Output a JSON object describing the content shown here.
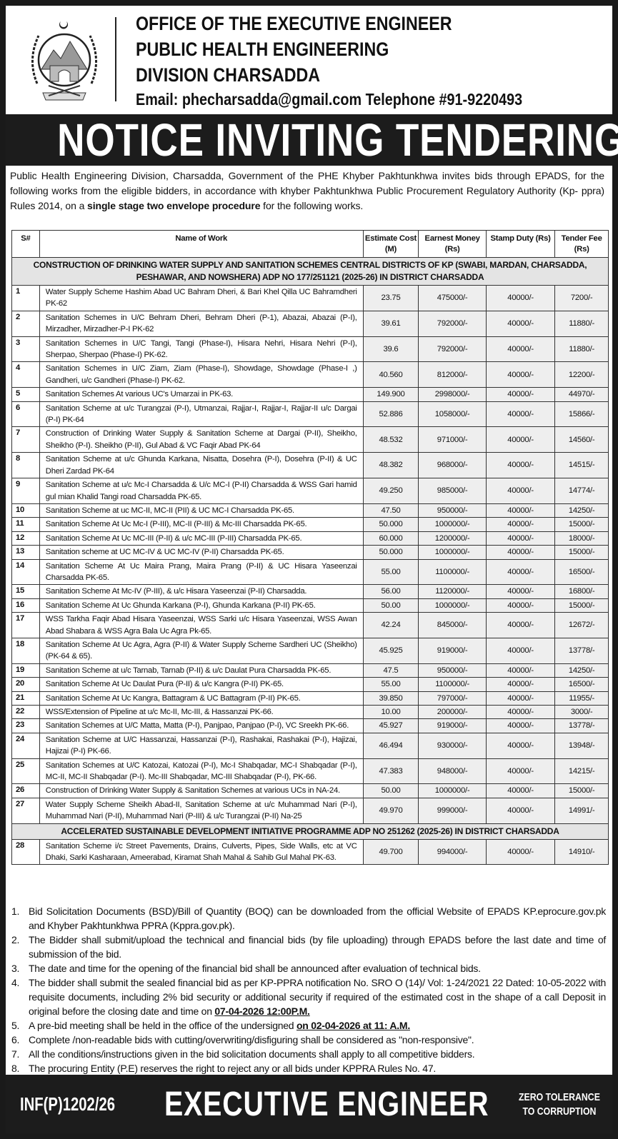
{
  "header": {
    "line1": "OFFICE OF THE EXECUTIVE ENGINEER",
    "line2": "PUBLIC HEALTH ENGINEERING",
    "line3": "DIVISION CHARSADDA",
    "contact": "Email: phecharsadda@gmail.com Telephone #91-9220493",
    "logo": "Government of Khyber Pakhtunkhwa emblem"
  },
  "title": "NOTICE INVITING TENDERING",
  "intro": {
    "text": "Public Health Engineering Division, Charsadda, Government of the PHE Khyber Pakhtunkhwa invites bids through EPADS, for the following works from the eligible bidders, in accordance with khyber Pakhtunkhwa Public Procurement Regulatory Authority (Kp- ppra) Rules 2014, on a ",
    "bold": "single stage two envelope procedure",
    "tail": " for the following works."
  },
  "table": {
    "headers": [
      "S#",
      "Name of Work",
      "Estimate Cost (M)",
      "Earnest Money (Rs)",
      "Stamp Duty (Rs)",
      "Tender Fee (Rs)"
    ],
    "sections": [
      {
        "title": "CONSTRUCTION OF DRINKING WATER SUPPLY AND SANITATION SCHEMES CENTRAL DISTRICTS OF KP (SWABI, MARDAN, CHARSADDA, PESHAWAR, AND NOWSHERA) ADP NO 177/251121 (2025-26)  IN DISTRICT CHARSADDA",
        "rows": [
          [
            "1",
            "Water Supply Scheme Hashim Abad UC Bahram Dheri, & Bari Khel Qilla UC Bahramdheri PK-62",
            "23.75",
            "475000/-",
            "40000/-",
            "7200/-"
          ],
          [
            "2",
            "Sanitation Schemes in U/C Behram Dheri, Behram Dheri (P-1), Abazai, Abazai (P-I), Mirzadher, Mirzadher-P-I PK-62",
            "39.61",
            "792000/-",
            "40000/-",
            "11880/-"
          ],
          [
            "3",
            "Sanitation Schemes in U/C Tangi, Tangi (Phase-I), Hisara Nehri, Hisara Nehri (P-I), Sherpao, Sherpao (Phase-I) PK-62.",
            "39.6",
            "792000/-",
            "40000/-",
            "11880/-"
          ],
          [
            "4",
            "Sanitation Schemes in U/C Ziam, Ziam (Phase-I), Showdage, Showdage (Phase-I ,) Gandheri, u/c Gandheri (Phase-I) PK-62.",
            "40.560",
            "812000/-",
            "40000/-",
            "12200/-"
          ],
          [
            "5",
            "Sanitation Schemes At various UC's Umarzai in PK-63.",
            "149.900",
            "2998000/-",
            "40000/-",
            "44970/-"
          ],
          [
            "6",
            "Sanitation Scheme at u/c Turangzai (P-I), Utmanzai, Rajjar-I, Rajjar-I, Rajjar-II u/c Dargai (P-I) PK-64",
            "52.886",
            "1058000/-",
            "40000/-",
            "15866/-"
          ],
          [
            "7",
            "Construction of Drinking Water Supply & Sanitation Scheme at Dargai (P-II), Sheikho, Sheikho (P-I). Sheikho (P-II), Gul Abad & VC Faqir Abad PK-64",
            "48.532",
            "971000/-",
            "40000/-",
            "14560/-"
          ],
          [
            "8",
            "Sanitation Scheme at u/c Ghunda Karkana, Nisatta, Dosehra (P-I), Dosehra (P-II) & UC Dheri Zardad PK-64",
            "48.382",
            "968000/-",
            "40000/-",
            "14515/-"
          ],
          [
            "9",
            "Sanitation Scheme at u/c Mc-I Charsadda & U/c MC-I (P-II) Charsadda & WSS Gari hamid gul mian Khalid Tangi road Charsadda PK-65.",
            "49.250",
            "985000/-",
            "40000/-",
            "14774/-"
          ],
          [
            "10",
            "Sanitation Scheme at uc MC-II, MC-II (PII) & UC MC-I Charsadda PK-65.",
            "47.50",
            "950000/-",
            "40000/-",
            "14250/-"
          ],
          [
            "11",
            "Sanitation Scheme At Uc Mc-I (P-III), MC-II (P-III) & Mc-III Charsadda PK-65.",
            "50.000",
            "1000000/-",
            "40000/-",
            "15000/-"
          ],
          [
            "12",
            "Sanitation Scheme At Uc MC-III (P-II) & u/c MC-III (P-III) Charsadda PK-65.",
            "60.000",
            "1200000/-",
            "40000/-",
            "18000/-"
          ],
          [
            "13",
            "Sanitation scheme at UC MC-IV & UC MC-IV (P-II) Charsadda PK-65.",
            "50.000",
            "1000000/-",
            "40000/-",
            "15000/-"
          ],
          [
            "14",
            "Sanitation Scheme At Uc Maira Prang, Maira Prang (P-II) & UC Hisara Yaseenzai Charsadda PK-65.",
            "55.00",
            "1100000/-",
            "40000/-",
            "16500/-"
          ],
          [
            "15",
            "Sanitation Scheme At Mc-IV (P-III), & u/c Hisara Yaseenzai (P-II) Charsadda.",
            "56.00",
            "1120000/-",
            "40000/-",
            "16800/-"
          ],
          [
            "16",
            "Sanitation Scheme At Uc Ghunda Karkana (P-I), Ghunda Karkana (P-II) PK-65.",
            "50.00",
            "1000000/-",
            "40000/-",
            "15000/-"
          ],
          [
            "17",
            "WSS Tarkha Faqir Abad Hisara Yaseenzai, WSS Sarki u/c Hisara Yaseenzai, WSS Awan Abad Shabara & WSS Agra Bala Uc Agra Pk-65.",
            "42.24",
            "845000/-",
            "40000/-",
            "12672/-"
          ],
          [
            "18",
            "Sanitation Scheme At Uc Agra, Agra (P-II) & Water Supply Scheme Sardheri UC (Sheikho) (PK-64 & 65).",
            "45.925",
            "919000/-",
            "40000/-",
            "13778/-"
          ],
          [
            "19",
            "Sanitation Scheme at u/c Tarnab, Tarnab (P-II) & u/c Daulat Pura Charsadda PK-65.",
            "47.5",
            "950000/-",
            "40000/-",
            "14250/-"
          ],
          [
            "20",
            "Sanitation Scheme At Uc Daulat Pura (P-II) & u/c Kangra (P-II) PK-65.",
            "55.00",
            "1100000/-",
            "40000/-",
            "16500/-"
          ],
          [
            "21",
            "Sanitation Scheme At Uc Kangra, Battagram & UC Battagram (P-II) PK-65.",
            "39.850",
            "797000/-",
            "40000/-",
            "11955/-"
          ],
          [
            "22",
            "WSS/Extension of Pipeline at u/c Mc-II, Mc-III, & Hassanzai PK-66.",
            "10.00",
            "200000/-",
            "40000/-",
            "3000/-"
          ],
          [
            "23",
            "Sanitation Schemes at U/C Matta, Matta (P-I), Panjpao, Panjpao (P-I), VC Sreekh PK-66.",
            "45.927",
            "919000/-",
            "40000/-",
            "13778/-"
          ],
          [
            "24",
            "Sanitation Scheme at U/C Hassanzai, Hassanzai (P-I), Rashakai, Rashakai (P-I), Hajizai, Hajizai (P-I) PK-66.",
            "46.494",
            "930000/-",
            "40000/-",
            "13948/-"
          ],
          [
            "25",
            "Sanitation Schemes at U/C Katozai, Katozai (P-I), Mc-I Shabqadar, MC-I Shabqadar (P-I), MC-II, MC-II Shabqadar (P-I). Mc-III Shabqadar, MC-III Shabqadar (P-I), PK-66.",
            "47.383",
            "948000/-",
            "40000/-",
            "14215/-"
          ],
          [
            "26",
            "Construction of Drinking Water Supply & Sanitation Schemes at various UCs in NA-24.",
            "50.00",
            "1000000/-",
            "40000/-",
            "15000/-"
          ],
          [
            "27",
            "Water Supply Scheme Sheikh Abad-II, Sanitation Scheme at u/c Muhammad Nari (P-I), Muhammad Nari (P-II), Muhammad Nari (P-III) & u/c Turangzai (P-II) Na-25",
            "49.970",
            "999000/-",
            "40000/-",
            "14991/-"
          ]
        ]
      },
      {
        "title": "ACCELERATED SUSTAINABLE DEVELOPMENT INITIATIVE PROGRAMME ADP NO 251262 (2025-26) IN DISTRICT CHARSADDA",
        "rows": [
          [
            "28",
            "Sanitation Scheme i/c Street Pavements, Drains, Culverts, Pipes, Side Walls, etc at VC Dhaki, Sarki Kasharaan, Ameerabad, Kiramat Shah Mahal & Sahib Gul Mahal PK-63.",
            "49.700",
            "994000/-",
            "40000/-",
            "14910/-"
          ]
        ]
      }
    ]
  },
  "notes": [
    {
      "n": "1.",
      "text": "Bid Solicitation Documents (BSD)/Bill of Quantity (BOQ) can be downloaded from the official Website of EPADS KP.eprocure.gov.pk and Khyber Pakhtunkhwa PPRA (Kppra.gov.pk).",
      "bold": ""
    },
    {
      "n": "2.",
      "text": "The Bidder shall submit/upload the technical and financial bids (by file uploading) through EPADS before the last date and time of submission of the bid.",
      "bold": ""
    },
    {
      "n": "3.",
      "text": "The date and time for the opening of the financial bid shall be announced after evaluation of technical bids.",
      "bold": ""
    },
    {
      "n": "4.",
      "text": "The bidder shall submit the sealed financial bid as per KP-PPRA notification No. SRO O (14)/ Vol: 1-24/2021 22 Dated: 10-05-2022 with requisite documents, including 2% bid security or additional security if required of the estimated cost in the shape of a call Deposit in original before the closing date and time on ",
      "bold": "07-04-2026 12:00P.M."
    },
    {
      "n": "5.",
      "text": "A pre-bid meeting shall be held in the office of the undersigned ",
      "bold": "on 02-04-2026 at 11: A.M."
    },
    {
      "n": "6.",
      "text": "Complete /non-readable bids with cutting/overwriting/disfiguring shall be considered as \"non-responsive\".",
      "bold": ""
    },
    {
      "n": "7.",
      "text": "All the conditions/instructions given in the bid solicitation documents shall apply to all competitive bidders.",
      "bold": ""
    },
    {
      "n": "8.",
      "text": "The procuring Entity (P.E) reserves the right to reject any or all bids under KPPRA Rules No. 47.",
      "bold": ""
    }
  ],
  "footer": {
    "ref": "INF(P)1202/26",
    "signatory": "EXECUTIVE ENGINEER",
    "slogan_line1": "ZERO TOLERANCE",
    "slogan_line2": "TO CORRUPTION"
  }
}
